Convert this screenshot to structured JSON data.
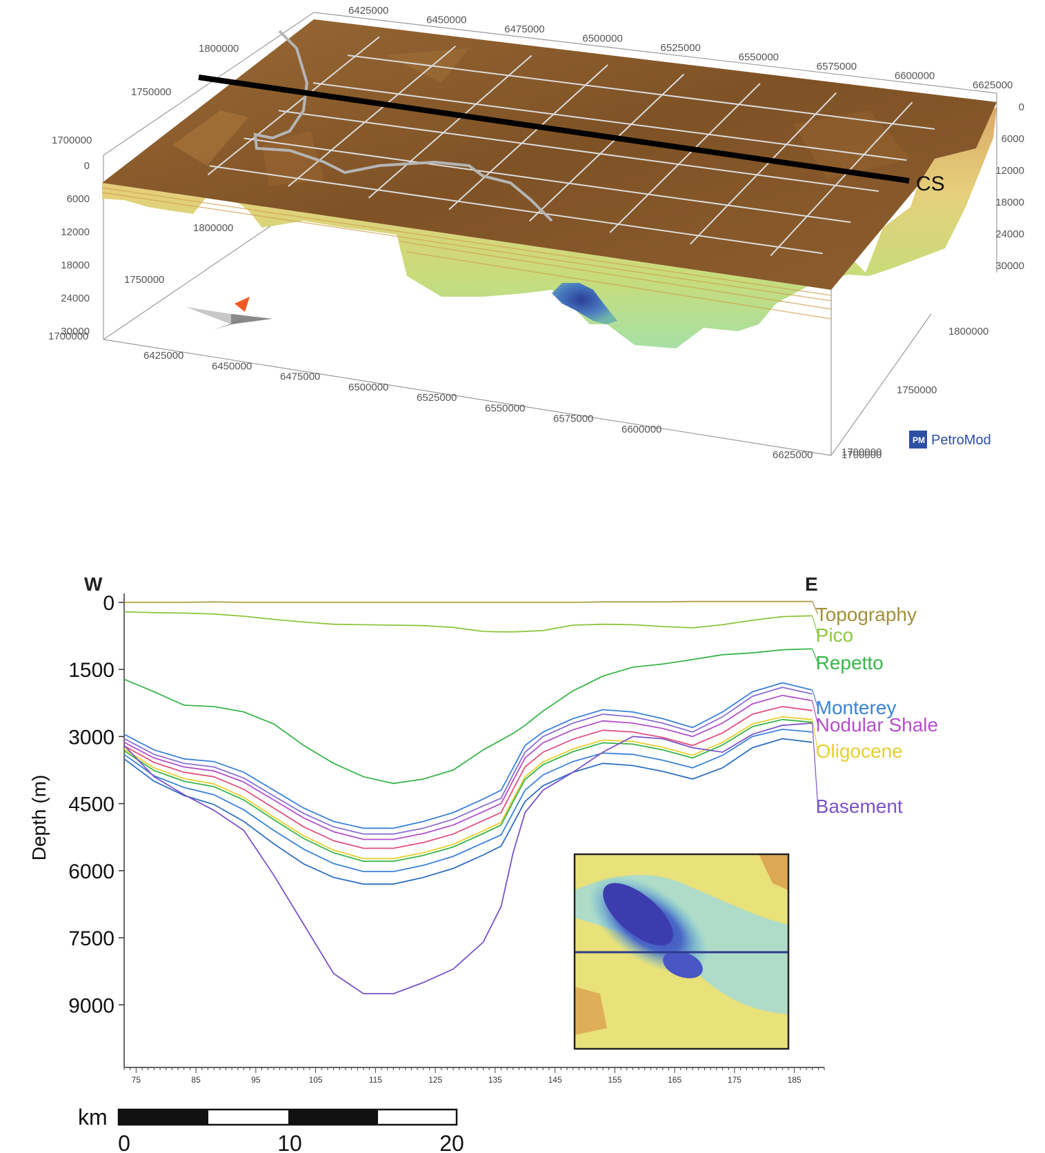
{
  "chart_data": [
    {
      "type": "3d-surface",
      "software_logo": "PetroMod",
      "section_label": "CS",
      "top_x_ticks": [
        "6425000",
        "6450000",
        "6475000",
        "6500000",
        "6525000",
        "6550000",
        "6575000",
        "6600000",
        "6625000"
      ],
      "top_y_ticks": [
        "1800000",
        "1750000",
        "1700000"
      ],
      "left_depth_ticks": [
        "0",
        "6000",
        "12000",
        "18000",
        "24000",
        "30000"
      ],
      "right_depth_ticks": [
        "0",
        "6000",
        "12000",
        "18000",
        "24000",
        "30000"
      ],
      "bottom_x_ticks": [
        "6425000",
        "6450000",
        "6475000",
        "6500000",
        "6525000",
        "6550000",
        "6575000",
        "6600000",
        "6625000"
      ],
      "back_wall_y_ticks": [
        "1800000",
        "1750000",
        "1700000"
      ],
      "right_y_ticks": [
        "1800000",
        "1750000",
        "1700000"
      ],
      "corner_labels": [
        "6625000",
        "1700000"
      ],
      "colors": {
        "surface": "#8b5a2b",
        "slab_top": "#e8c07a",
        "slab_mid": "#c5d36b",
        "slab_deep": "#a6dc8a",
        "trough": "#2f4a9c",
        "grid": "#d8d8d8",
        "coast": "#b7b7b7"
      }
    },
    {
      "type": "line",
      "ylabel": "Depth (m)",
      "xlabel": "",
      "left_label": "W",
      "right_label": "E",
      "xlim": [
        73,
        190
      ],
      "ylim": [
        -200,
        10400
      ],
      "y_reversed": true,
      "yticks": [
        0,
        1500,
        3000,
        4500,
        6000,
        7500,
        9000
      ],
      "xticks": [
        75,
        85,
        95,
        105,
        115,
        125,
        135,
        145,
        155,
        165,
        175,
        185
      ],
      "x": [
        73,
        78,
        83,
        88,
        93,
        98,
        103,
        108,
        113,
        118,
        123,
        128,
        133,
        136,
        138,
        140,
        143,
        148,
        153,
        158,
        163,
        168,
        173,
        178,
        183,
        188
      ],
      "series": [
        {
          "name": "Topography",
          "color": "#b0a04a",
          "values": [
            0,
            0,
            0,
            -10,
            0,
            0,
            0,
            0,
            0,
            0,
            0,
            0,
            0,
            0,
            0,
            0,
            0,
            0,
            -10,
            -10,
            -10,
            -20,
            -20,
            -20,
            -20,
            -20
          ]
        },
        {
          "name": "Pico",
          "color": "#8cc63f",
          "values": [
            210,
            230,
            240,
            260,
            310,
            380,
            440,
            490,
            500,
            510,
            520,
            560,
            650,
            660,
            660,
            650,
            630,
            510,
            490,
            500,
            540,
            570,
            500,
            400,
            320,
            300
          ]
        },
        {
          "name": "Repetto",
          "color": "#39b54a",
          "values": [
            1720,
            2000,
            2300,
            2330,
            2450,
            2720,
            3200,
            3600,
            3900,
            4050,
            3950,
            3750,
            3300,
            3080,
            2930,
            2750,
            2430,
            1980,
            1650,
            1450,
            1380,
            1280,
            1170,
            1130,
            1060,
            1040
          ]
        },
        {
          "name": "Monterey",
          "color": "#3b82d6",
          "values": [
            2950,
            3300,
            3500,
            3560,
            3800,
            4200,
            4600,
            4900,
            5050,
            5050,
            4900,
            4700,
            4400,
            4200,
            3700,
            3200,
            2900,
            2600,
            2400,
            2450,
            2600,
            2800,
            2450,
            2000,
            1800,
            1960
          ]
        },
        {
          "name": "Monterey",
          "color": "#8a6fd1",
          "values": [
            3050,
            3400,
            3600,
            3680,
            3930,
            4330,
            4720,
            5020,
            5180,
            5180,
            5050,
            4850,
            4550,
            4380,
            3850,
            3350,
            3000,
            2700,
            2500,
            2560,
            2700,
            2900,
            2560,
            2100,
            1900,
            2050
          ]
        },
        {
          "name": "Nodular Shale",
          "color": "#b44fc9",
          "values": [
            3130,
            3480,
            3680,
            3770,
            4020,
            4420,
            4820,
            5130,
            5300,
            5300,
            5170,
            4980,
            4680,
            4500,
            3980,
            3480,
            3140,
            2850,
            2650,
            2700,
            2820,
            3000,
            2700,
            2270,
            2080,
            2200
          ]
        },
        {
          "name": "Nodular Shale",
          "color": "#e0517a",
          "values": [
            3210,
            3580,
            3800,
            3900,
            4180,
            4600,
            5020,
            5330,
            5500,
            5500,
            5370,
            5180,
            4880,
            4700,
            4180,
            3680,
            3350,
            3060,
            2860,
            2900,
            3020,
            3200,
            2920,
            2500,
            2330,
            2420
          ]
        },
        {
          "name": "Oligocene",
          "color": "#e6cf30",
          "values": [
            3280,
            3700,
            3940,
            4060,
            4360,
            4800,
            5220,
            5540,
            5730,
            5730,
            5600,
            5410,
            5110,
            4920,
            4400,
            3900,
            3570,
            3280,
            3080,
            3110,
            3240,
            3420,
            3130,
            2720,
            2560,
            2620
          ]
        },
        {
          "name": "Oligocene",
          "color": "#39b54a",
          "values": [
            3320,
            3760,
            4000,
            4120,
            4420,
            4860,
            5280,
            5600,
            5790,
            5790,
            5660,
            5470,
            5170,
            4980,
            4460,
            3960,
            3630,
            3340,
            3140,
            3170,
            3300,
            3480,
            3190,
            2780,
            2620,
            2680
          ]
        },
        {
          "name": "Oligocene",
          "color": "#3b82d6",
          "values": [
            3400,
            3880,
            4140,
            4300,
            4640,
            5100,
            5520,
            5840,
            6020,
            6020,
            5880,
            5680,
            5380,
            5200,
            4700,
            4200,
            3860,
            3560,
            3370,
            3400,
            3530,
            3700,
            3420,
            3000,
            2840,
            2900
          ]
        },
        {
          "name": "Oligocene",
          "color": "#2f6fc0",
          "values": [
            3500,
            4000,
            4320,
            4520,
            4900,
            5400,
            5850,
            6150,
            6300,
            6300,
            6150,
            5950,
            5650,
            5450,
            4950,
            4450,
            4100,
            3800,
            3600,
            3650,
            3780,
            3950,
            3700,
            3250,
            3050,
            3130
          ]
        },
        {
          "name": "Basement",
          "color": "#7a52c7",
          "values": [
            3200,
            3900,
            4300,
            4650,
            5100,
            6100,
            7200,
            8300,
            8750,
            8750,
            8500,
            8200,
            7600,
            6800,
            5600,
            4700,
            4200,
            3800,
            3350,
            3000,
            3050,
            3250,
            3350,
            2950,
            2750,
            2700
          ]
        }
      ],
      "legend": [
        "Topography",
        "Pico",
        "Repetto",
        "Monterey",
        "Nodular Shale",
        "Oligocene",
        "Basement"
      ],
      "legend_colors": [
        "#a09038",
        "#8cc63f",
        "#39b54a",
        "#3b82d6",
        "#b44fc9",
        "#e6cf30",
        "#7a52c7"
      ],
      "legend_anchor_values": [
        -20,
        300,
        1040,
        1960,
        2200,
        2620,
        2700
      ],
      "scale_bar": {
        "unit": "km",
        "labels": [
          "0",
          "10",
          "20"
        ]
      }
    }
  ]
}
